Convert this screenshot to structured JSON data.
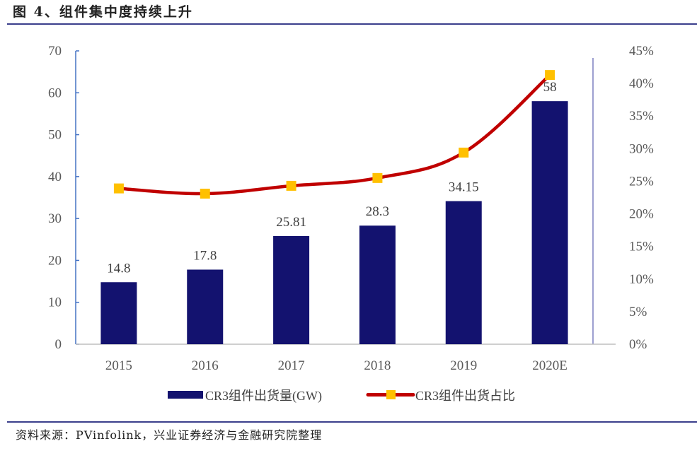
{
  "figure": {
    "title": "图 4、组件集中度持续上升",
    "source": "资料来源：PVinfolink，兴业证券经济与金融研究院整理"
  },
  "chart_data": {
    "type": "bar",
    "title": "图 4、组件集中度持续上升",
    "categories": [
      "2015",
      "2016",
      "2017",
      "2018",
      "2019",
      "2020E"
    ],
    "series": [
      {
        "name": "CR3组件出货量(GW)",
        "type": "bar",
        "axis": "left",
        "color": "#13126f",
        "values": [
          14.8,
          17.8,
          25.81,
          28.3,
          34.15,
          58
        ],
        "data_labels": [
          "14.8",
          "17.8",
          "25.81",
          "28.3",
          "34.15",
          "58"
        ]
      },
      {
        "name": "CR3组件出货占比",
        "type": "line",
        "axis": "right",
        "color": "#c00000",
        "marker_color": "#ffc000",
        "values": [
          23.9,
          23.1,
          24.3,
          25.5,
          29.4,
          41.3
        ],
        "unit": "%"
      }
    ],
    "y_left": {
      "ylim": [
        0,
        70
      ],
      "ticks": [
        0,
        10,
        20,
        30,
        40,
        50,
        60,
        70
      ],
      "tick_labels": [
        "0",
        "10",
        "20",
        "30",
        "40",
        "50",
        "60",
        "70"
      ]
    },
    "y_right": {
      "ylim": [
        0,
        45
      ],
      "ticks": [
        0,
        5,
        10,
        15,
        20,
        25,
        30,
        35,
        40,
        45
      ],
      "tick_labels": [
        "0%",
        "5%",
        "10%",
        "15%",
        "20%",
        "25%",
        "30%",
        "35%",
        "40%",
        "45%"
      ]
    },
    "xlabel": "",
    "ylabel": "",
    "grid": false,
    "legend": {
      "position": "bottom",
      "entries": [
        "CR3组件出货量(GW)",
        "CR3组件出货占比"
      ]
    }
  }
}
